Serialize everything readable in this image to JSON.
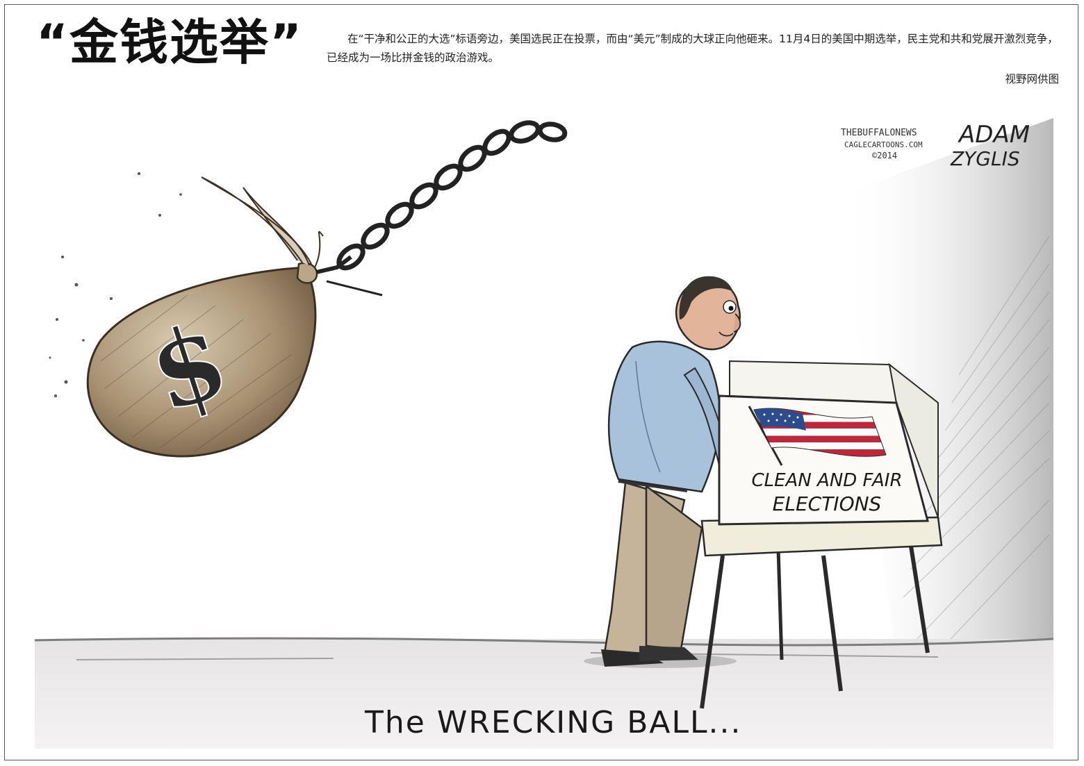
{
  "headline": "“金钱选举”",
  "caption": "在“干净和公正的大选”标语旁边，美国选民正在投票，而由“美元”制成的大球正向他砸来。11月4日的美国中期选举，民主党和共和党展开激烈竞争，已经成为一场比拼金钱的政治游戏。",
  "credit": "视野网供图",
  "cartoon": {
    "signature_line1": "THEBUFFALONEWS",
    "signature_line2": "CAGLECARTOONS.COM",
    "signature_line3": "©2014",
    "artist_first": "ADAM",
    "artist_last": "ZYGLIS",
    "booth_text_line1": "CLEAN AND FAIR",
    "booth_text_line2": "ELECTIONS",
    "bag_symbol": "$",
    "bottom_caption": "The WRECKING BALL..."
  }
}
